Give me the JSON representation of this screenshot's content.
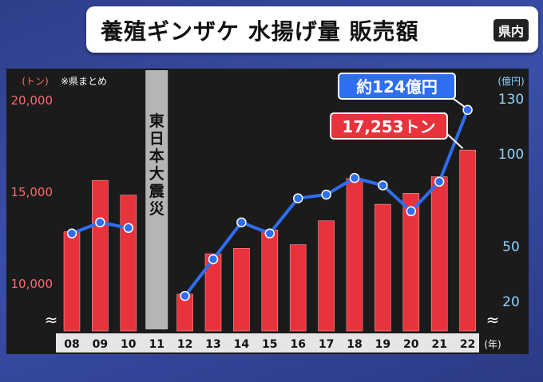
{
  "title": {
    "text": "養殖ギンザケ 水揚げ量 販売額",
    "badge": "県内"
  },
  "chart_data": {
    "type": "bar+line",
    "categories": [
      "08",
      "09",
      "10",
      "11",
      "12",
      "13",
      "14",
      "15",
      "16",
      "17",
      "18",
      "19",
      "20",
      "21",
      "22"
    ],
    "series": [
      {
        "axis": "left",
        "type": "bar",
        "values": [
          12800,
          15600,
          14800,
          null,
          9400,
          11600,
          11900,
          12900,
          12100,
          13400,
          15700,
          14300,
          14900,
          15800,
          17253
        ],
        "color": "#e8323c"
      },
      {
        "axis": "right",
        "type": "line",
        "values": [
          57,
          63,
          60,
          null,
          23,
          43,
          63,
          57,
          76,
          78,
          87,
          83,
          69,
          85,
          124
        ],
        "color": "#2f6ef2"
      }
    ],
    "left_axis": {
      "unit": "(トン)",
      "ticks": [
        "10,000",
        "15,000",
        "20,000"
      ],
      "tick_values": [
        10000,
        15000,
        20000
      ],
      "range": [
        8600,
        20000
      ],
      "break_symbol": "≈"
    },
    "right_axis": {
      "unit": "(億円)",
      "ticks": [
        "20",
        "50",
        "100",
        "130"
      ],
      "tick_values": [
        20,
        50,
        100,
        130
      ],
      "break_symbol": "≈"
    },
    "x_unit": "(年)",
    "note": "※県まとめ",
    "gap_label": "東日本大震災",
    "callouts": {
      "sales": "約124億円",
      "volume": "17,253トン"
    },
    "colors": {
      "bar": "#e8323c",
      "line": "#2f6ef2",
      "left_axis_text": "#ff6a6a",
      "right_axis_text": "#8fd3ff",
      "gap_band": "#b5b5b5"
    }
  }
}
